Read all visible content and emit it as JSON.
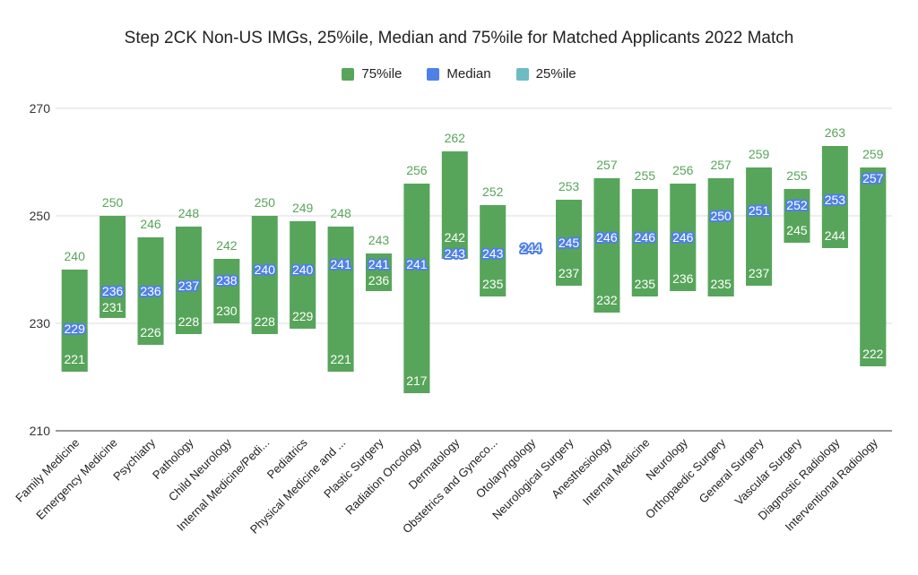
{
  "chart_data": {
    "type": "bar",
    "title": "Step 2CK Non-US IMGs, 25%ile, Median and 75%ile for Matched Applicants 2022 Match",
    "legend": [
      "75%ile",
      "Median",
      "25%ile"
    ],
    "legend_position": "top",
    "colors": {
      "p75": "#57a55a",
      "median": "#4f80e8",
      "p25": "#6dbcc3"
    },
    "ylim": [
      210,
      270
    ],
    "yticks": [
      210,
      230,
      250,
      270
    ],
    "grid": true,
    "categories": [
      "Family Medicine",
      "Emergency Medicine",
      "Psychiatry",
      "Pathology",
      "Child Neurology",
      "Internal Medicine/Pedi...",
      "Pediatrics",
      "Physical Medicine and ...",
      "Plastic Surgery",
      "Radiation Oncology",
      "Dermatology",
      "Obstetrics and Gyneco...",
      "Otolaryngology",
      "Neurological Surgery",
      "Anesthesiology",
      "Internal Medicine",
      "Neurology",
      "Orthopaedic Surgery",
      "General Surgery",
      "Vascular Surgery",
      "Diagnostic Radiology",
      "Interventional Radiology"
    ],
    "series": [
      {
        "name": "25%ile",
        "values": [
          221,
          231,
          226,
          228,
          230,
          228,
          229,
          221,
          236,
          217,
          242,
          235,
          null,
          237,
          232,
          235,
          236,
          235,
          237,
          245,
          244,
          222
        ]
      },
      {
        "name": "Median",
        "values": [
          229,
          236,
          236,
          237,
          238,
          240,
          240,
          241,
          241,
          241,
          243,
          243,
          244,
          245,
          246,
          246,
          246,
          250,
          251,
          252,
          253,
          257
        ]
      },
      {
        "name": "75%ile",
        "values": [
          240,
          250,
          246,
          248,
          242,
          250,
          249,
          248,
          243,
          256,
          262,
          252,
          null,
          253,
          257,
          255,
          256,
          257,
          259,
          255,
          263,
          259
        ]
      }
    ]
  }
}
